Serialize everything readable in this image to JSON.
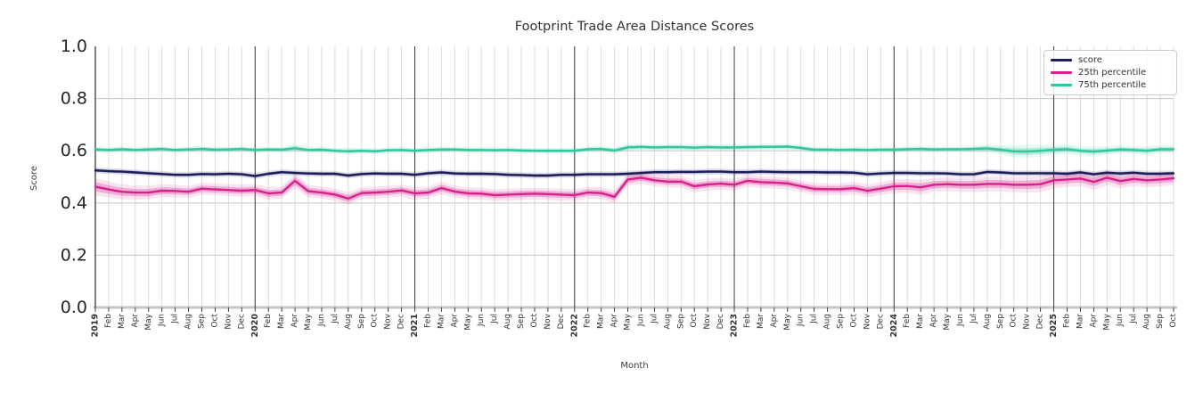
{
  "chart_data": {
    "type": "line",
    "title": "Footprint Trade Area Distance Scores",
    "xlabel": "Month",
    "ylabel": "Score",
    "ylim": [
      0.0,
      1.0
    ],
    "yticks": [
      "0.0",
      "0.2",
      "0.4",
      "0.6",
      "0.8",
      "1.0"
    ],
    "grid": "on",
    "legend_position": "upper right",
    "x_labels": [
      "2019",
      "Feb",
      "Mar",
      "Apr",
      "May",
      "Jun",
      "Jul",
      "Aug",
      "Sep",
      "Oct",
      "Nov",
      "Dec",
      "2020",
      "Feb",
      "Mar",
      "Apr",
      "May",
      "Jun",
      "Jul",
      "Aug",
      "Sep",
      "Oct",
      "Nov",
      "Dec",
      "2021",
      "Feb",
      "Mar",
      "Apr",
      "May",
      "Jun",
      "Jul",
      "Aug",
      "Sep",
      "Oct",
      "Nov",
      "Dec",
      "2022",
      "Feb",
      "Mar",
      "Apr",
      "May",
      "Jun",
      "Jul",
      "Aug",
      "Sep",
      "Oct",
      "Nov",
      "Dec",
      "2023",
      "Feb",
      "Mar",
      "Apr",
      "May",
      "Jun",
      "Jul",
      "Aug",
      "Sep",
      "Oct",
      "Nov",
      "Dec",
      "2024",
      "Feb",
      "Mar",
      "Apr",
      "May",
      "Jun",
      "Jul",
      "Aug",
      "Sep",
      "Oct",
      "Nov",
      "Dec",
      "2025",
      "Feb",
      "Mar",
      "Apr",
      "May",
      "Jun",
      "Jul",
      "Aug",
      "Sep",
      "Oct"
    ],
    "series": [
      {
        "name": "score",
        "color": "#1c1e5a",
        "band_halfwidth": 0.006,
        "values": [
          0.525,
          0.522,
          0.52,
          0.517,
          0.514,
          0.511,
          0.508,
          0.508,
          0.511,
          0.51,
          0.512,
          0.51,
          0.503,
          0.512,
          0.518,
          0.515,
          0.513,
          0.512,
          0.512,
          0.505,
          0.511,
          0.513,
          0.512,
          0.512,
          0.508,
          0.514,
          0.517,
          0.513,
          0.512,
          0.512,
          0.511,
          0.508,
          0.507,
          0.505,
          0.505,
          0.508,
          0.508,
          0.51,
          0.51,
          0.51,
          0.512,
          0.515,
          0.518,
          0.518,
          0.519,
          0.519,
          0.52,
          0.52,
          0.518,
          0.518,
          0.52,
          0.519,
          0.518,
          0.518,
          0.518,
          0.517,
          0.517,
          0.516,
          0.51,
          0.513,
          0.515,
          0.515,
          0.514,
          0.514,
          0.513,
          0.51,
          0.51,
          0.519,
          0.517,
          0.514,
          0.514,
          0.514,
          0.514,
          0.512,
          0.517,
          0.51,
          0.516,
          0.513,
          0.516,
          0.512,
          0.512,
          0.514
        ]
      },
      {
        "name": "25th percentile",
        "color": "#d7218d",
        "band_halfwidth": [
          0.018,
          0.016,
          0.015,
          0.014,
          0.014,
          0.013,
          0.013,
          0.012,
          0.012,
          0.012,
          0.012,
          0.012,
          0.012,
          0.013,
          0.012,
          0.016,
          0.013,
          0.012,
          0.012,
          0.013,
          0.012,
          0.012,
          0.012,
          0.012,
          0.013,
          0.012,
          0.013,
          0.012,
          0.012,
          0.012,
          0.012,
          0.012,
          0.012,
          0.012,
          0.012,
          0.012,
          0.012,
          0.012,
          0.012,
          0.013,
          0.013,
          0.012,
          0.012,
          0.012,
          0.012,
          0.012,
          0.012,
          0.012,
          0.012,
          0.012,
          0.012,
          0.012,
          0.012,
          0.012,
          0.012,
          0.012,
          0.012,
          0.013,
          0.013,
          0.013,
          0.014,
          0.014,
          0.015,
          0.014,
          0.014,
          0.014,
          0.015,
          0.015,
          0.015,
          0.015,
          0.016,
          0.016,
          0.016,
          0.015,
          0.015,
          0.016,
          0.015,
          0.015,
          0.014,
          0.014,
          0.014,
          0.014
        ],
        "values": [
          0.462,
          0.452,
          0.443,
          0.44,
          0.44,
          0.447,
          0.446,
          0.443,
          0.455,
          0.452,
          0.45,
          0.447,
          0.45,
          0.437,
          0.44,
          0.485,
          0.445,
          0.44,
          0.432,
          0.417,
          0.438,
          0.44,
          0.443,
          0.448,
          0.437,
          0.44,
          0.457,
          0.444,
          0.437,
          0.436,
          0.43,
          0.432,
          0.434,
          0.436,
          0.434,
          0.432,
          0.43,
          0.44,
          0.438,
          0.424,
          0.49,
          0.497,
          0.487,
          0.482,
          0.482,
          0.464,
          0.471,
          0.474,
          0.47,
          0.485,
          0.48,
          0.478,
          0.475,
          0.464,
          0.454,
          0.453,
          0.453,
          0.457,
          0.447,
          0.455,
          0.464,
          0.465,
          0.46,
          0.47,
          0.472,
          0.47,
          0.47,
          0.473,
          0.473,
          0.47,
          0.47,
          0.472,
          0.487,
          0.49,
          0.494,
          0.481,
          0.497,
          0.484,
          0.492,
          0.487,
          0.49,
          0.495
        ]
      },
      {
        "name": "75th percentile",
        "color": "#2fc79b",
        "band_halfwidth": [
          0.006,
          0.006,
          0.006,
          0.006,
          0.006,
          0.006,
          0.006,
          0.006,
          0.006,
          0.006,
          0.006,
          0.006,
          0.006,
          0.006,
          0.006,
          0.008,
          0.006,
          0.006,
          0.006,
          0.007,
          0.006,
          0.006,
          0.006,
          0.006,
          0.006,
          0.006,
          0.006,
          0.006,
          0.006,
          0.006,
          0.006,
          0.006,
          0.006,
          0.006,
          0.006,
          0.006,
          0.006,
          0.006,
          0.006,
          0.007,
          0.007,
          0.006,
          0.006,
          0.006,
          0.006,
          0.006,
          0.006,
          0.006,
          0.006,
          0.006,
          0.006,
          0.006,
          0.006,
          0.006,
          0.006,
          0.006,
          0.006,
          0.006,
          0.006,
          0.006,
          0.006,
          0.006,
          0.006,
          0.006,
          0.006,
          0.006,
          0.007,
          0.008,
          0.009,
          0.012,
          0.013,
          0.012,
          0.01,
          0.01,
          0.009,
          0.01,
          0.009,
          0.008,
          0.008,
          0.009,
          0.008,
          0.008
        ],
        "values": [
          0.605,
          0.603,
          0.606,
          0.603,
          0.605,
          0.607,
          0.603,
          0.605,
          0.607,
          0.604,
          0.605,
          0.607,
          0.603,
          0.605,
          0.604,
          0.61,
          0.603,
          0.604,
          0.6,
          0.598,
          0.6,
          0.598,
          0.602,
          0.603,
          0.6,
          0.603,
          0.605,
          0.605,
          0.603,
          0.603,
          0.602,
          0.603,
          0.601,
          0.6,
          0.6,
          0.6,
          0.6,
          0.606,
          0.607,
          0.601,
          0.613,
          0.615,
          0.613,
          0.614,
          0.614,
          0.612,
          0.614,
          0.613,
          0.613,
          0.614,
          0.615,
          0.615,
          0.616,
          0.611,
          0.604,
          0.604,
          0.603,
          0.604,
          0.603,
          0.604,
          0.604,
          0.606,
          0.607,
          0.605,
          0.606,
          0.606,
          0.607,
          0.609,
          0.604,
          0.598,
          0.597,
          0.6,
          0.604,
          0.606,
          0.6,
          0.597,
          0.601,
          0.605,
          0.603,
          0.6,
          0.606,
          0.606
        ]
      }
    ]
  }
}
